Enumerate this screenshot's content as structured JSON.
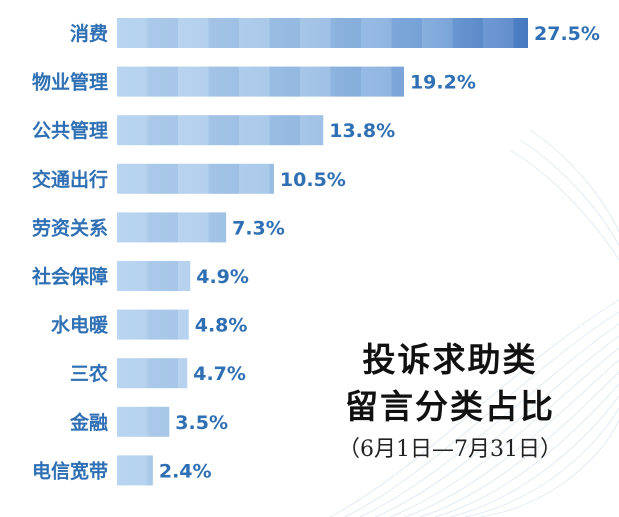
{
  "chart_data": {
    "type": "bar",
    "orientation": "horizontal",
    "categories": [
      "消费",
      "物业管理",
      "公共管理",
      "交通出行",
      "劳资关系",
      "社会保障",
      "水电暖",
      "三农",
      "金融",
      "电信宽带"
    ],
    "values": [
      27.5,
      19.2,
      13.8,
      10.5,
      7.3,
      4.9,
      4.8,
      4.7,
      3.5,
      2.4
    ],
    "value_labels": [
      "27.5%",
      "19.2%",
      "13.8%",
      "10.5%",
      "7.3%",
      "4.9%",
      "4.8%",
      "4.7%",
      "3.5%",
      "2.4%"
    ],
    "unit": "%",
    "xlim": [
      0,
      27.5
    ],
    "grid": false,
    "legend": "none"
  },
  "title": {
    "line1": "投诉求助类",
    "line2": "留言分类占比",
    "subtitle": "（6月1日—7月31日）"
  },
  "colors": {
    "label": "#2f6fb3",
    "bar_light": "#b9d5f0",
    "bar_dark": "#4a7cc4",
    "title": "#111111"
  }
}
